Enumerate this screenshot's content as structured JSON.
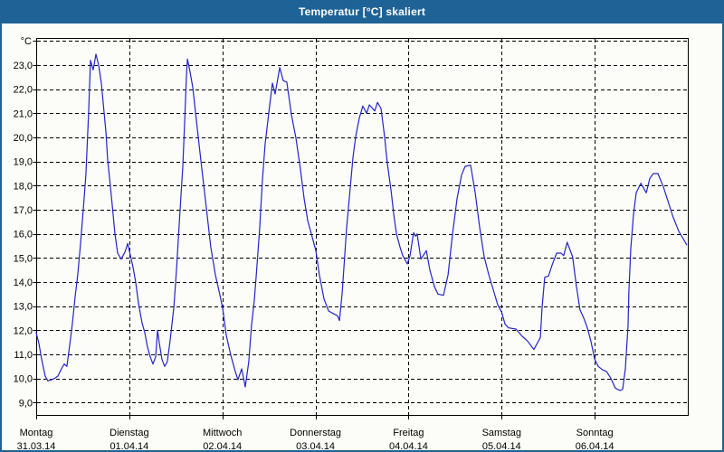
{
  "window": {
    "title": "Temperatur [°C] skaliert"
  },
  "colors": {
    "titlebar": "#1f6396",
    "window_border": "#1f6396",
    "window_background": "#fcfdf8",
    "line": "#2424cb",
    "grid": "#000000",
    "title_text": "#ffffff",
    "axis_text": "#000000"
  },
  "chart_data": {
    "type": "line",
    "title": "Temperatur [°C] skaliert",
    "y_axis_unit": "°C",
    "ylim": [
      8.45,
      24.125
    ],
    "x_range_hours": [
      0,
      168
    ],
    "grid": "dashed",
    "legend": "none",
    "y_gridlines": [
      9,
      10,
      11,
      12,
      13,
      14,
      15,
      16,
      17,
      18,
      19,
      20,
      21,
      22,
      23,
      24
    ],
    "y_ticks": [
      {
        "value": 23,
        "label": "23,0"
      },
      {
        "value": 22,
        "label": "22,0"
      },
      {
        "value": 21,
        "label": "21,0"
      },
      {
        "value": 20,
        "label": "20,0"
      },
      {
        "value": 19,
        "label": "19,0"
      },
      {
        "value": 18,
        "label": "18,0"
      },
      {
        "value": 17,
        "label": "17,0"
      },
      {
        "value": 16,
        "label": "16,0"
      },
      {
        "value": 15,
        "label": "15,0"
      },
      {
        "value": 14,
        "label": "14,0"
      },
      {
        "value": 13,
        "label": "13,0"
      },
      {
        "value": 12,
        "label": "12,0"
      },
      {
        "value": 11,
        "label": "11,0"
      },
      {
        "value": 10,
        "label": "10,0"
      },
      {
        "value": 9,
        "label": "9,0"
      }
    ],
    "x_days": [
      {
        "name": "Montag",
        "date": "31.03.14",
        "position_hours": 0
      },
      {
        "name": "Dienstag",
        "date": "01.04.14",
        "position_hours": 24
      },
      {
        "name": "Mittwoch",
        "date": "02.04.14",
        "position_hours": 48
      },
      {
        "name": "Donnerstag",
        "date": "03.04.14",
        "position_hours": 72
      },
      {
        "name": "Freitag",
        "date": "04.04.14",
        "position_hours": 96
      },
      {
        "name": "Samstag",
        "date": "05.04.14",
        "position_hours": 120
      },
      {
        "name": "Sonntag",
        "date": "06.04.14",
        "position_hours": 144
      }
    ],
    "series": [
      {
        "name": "Temperatur",
        "color": "#2424cb",
        "points": [
          [
            0,
            11.9
          ],
          [
            0.7,
            11.45
          ],
          [
            1.4,
            10.8
          ],
          [
            2.3,
            10.1
          ],
          [
            3,
            9.9
          ],
          [
            4,
            9.95
          ],
          [
            4.7,
            10
          ],
          [
            5.6,
            10.1
          ],
          [
            6.5,
            10.4
          ],
          [
            7.2,
            10.6
          ],
          [
            7.9,
            10.5
          ],
          [
            8.6,
            11.35
          ],
          [
            9.3,
            12.25
          ],
          [
            10,
            13.35
          ],
          [
            10.7,
            14.3
          ],
          [
            11.4,
            15.55
          ],
          [
            12.1,
            16.95
          ],
          [
            12.8,
            18.45
          ],
          [
            13.5,
            21
          ],
          [
            14,
            23.2
          ],
          [
            14.7,
            22.8
          ],
          [
            15.4,
            23.45
          ],
          [
            16.1,
            23
          ],
          [
            16.8,
            22.25
          ],
          [
            18,
            20.2
          ],
          [
            18.4,
            19.1
          ],
          [
            19.1,
            18
          ],
          [
            19.6,
            17.2
          ],
          [
            20.3,
            16
          ],
          [
            21,
            15.2
          ],
          [
            21.9,
            14.95
          ],
          [
            22.9,
            15.25
          ],
          [
            23.6,
            15.6
          ],
          [
            24.3,
            15.1
          ],
          [
            25,
            14.6
          ],
          [
            25.7,
            13.95
          ],
          [
            26.4,
            13.1
          ],
          [
            27.3,
            12.3
          ],
          [
            28,
            11.9
          ],
          [
            28.7,
            11.3
          ],
          [
            29.4,
            10.9
          ],
          [
            30.1,
            10.6
          ],
          [
            30.8,
            10.9
          ],
          [
            31.3,
            12
          ],
          [
            31.7,
            11.5
          ],
          [
            32.4,
            10.8
          ],
          [
            33.1,
            10.5
          ],
          [
            33.8,
            10.7
          ],
          [
            34.5,
            11.55
          ],
          [
            35.5,
            12.95
          ],
          [
            36.2,
            14.55
          ],
          [
            36.9,
            16.45
          ],
          [
            37.8,
            18.8
          ],
          [
            38.3,
            20.7
          ],
          [
            38.7,
            22.45
          ],
          [
            39,
            23.25
          ],
          [
            39.7,
            22.7
          ],
          [
            40.4,
            22.05
          ],
          [
            41.5,
            20.4
          ],
          [
            42.7,
            18.7
          ],
          [
            43.9,
            17.05
          ],
          [
            45,
            15.45
          ],
          [
            46.2,
            14.3
          ],
          [
            47.4,
            13.45
          ],
          [
            48.1,
            12.9
          ],
          [
            49,
            11.8
          ],
          [
            50.2,
            10.95
          ],
          [
            51.3,
            10.3
          ],
          [
            52,
            9.95
          ],
          [
            53,
            10.4
          ],
          [
            53.9,
            9.65
          ],
          [
            54.8,
            10.7
          ],
          [
            55.5,
            12.2
          ],
          [
            56.2,
            13.2
          ],
          [
            56.7,
            14.2
          ],
          [
            57.6,
            16.2
          ],
          [
            58.3,
            18.2
          ],
          [
            59,
            19.7
          ],
          [
            60,
            21.05
          ],
          [
            60.9,
            22.25
          ],
          [
            61.6,
            21.8
          ],
          [
            62.8,
            22.9
          ],
          [
            63.7,
            22.35
          ],
          [
            64.6,
            22.3
          ],
          [
            65.8,
            20.95
          ],
          [
            67,
            19.95
          ],
          [
            68.1,
            18.7
          ],
          [
            69.1,
            17.45
          ],
          [
            70,
            16.55
          ],
          [
            71.2,
            15.85
          ],
          [
            72.1,
            15.3
          ],
          [
            73,
            14.3
          ],
          [
            74.2,
            13.3
          ],
          [
            75.4,
            12.8
          ],
          [
            76.5,
            12.7
          ],
          [
            77.7,
            12.6
          ],
          [
            78.2,
            12.4
          ],
          [
            78.9,
            13.55
          ],
          [
            80,
            16.2
          ],
          [
            81,
            17.95
          ],
          [
            81.7,
            19.2
          ],
          [
            82.4,
            20.05
          ],
          [
            83.3,
            20.8
          ],
          [
            84.2,
            21.3
          ],
          [
            85.2,
            21
          ],
          [
            85.9,
            21.35
          ],
          [
            87.3,
            21.1
          ],
          [
            88,
            21.45
          ],
          [
            88.9,
            21.2
          ],
          [
            89.8,
            20.05
          ],
          [
            90.5,
            18.95
          ],
          [
            91.5,
            17.8
          ],
          [
            92.2,
            16.8
          ],
          [
            92.9,
            16
          ],
          [
            93.8,
            15.45
          ],
          [
            94.5,
            15.1
          ],
          [
            95.7,
            14.75
          ],
          [
            96.4,
            15.1
          ],
          [
            97.3,
            16.05
          ],
          [
            97.8,
            15.9
          ],
          [
            98.2,
            16
          ],
          [
            99.2,
            14.95
          ],
          [
            100.6,
            15.3
          ],
          [
            101.5,
            14.5
          ],
          [
            102.7,
            13.8
          ],
          [
            103.6,
            13.5
          ],
          [
            105,
            13.45
          ],
          [
            106.2,
            14.3
          ],
          [
            107.3,
            15.95
          ],
          [
            108.5,
            17.45
          ],
          [
            109.7,
            18.45
          ],
          [
            110.6,
            18.8
          ],
          [
            112,
            18.85
          ],
          [
            113.2,
            17.7
          ],
          [
            114.3,
            16.3
          ],
          [
            115.5,
            15.05
          ],
          [
            116.7,
            14.3
          ],
          [
            117.8,
            13.7
          ],
          [
            119,
            13.05
          ],
          [
            120,
            12.75
          ],
          [
            120.9,
            12.25
          ],
          [
            121.8,
            12.1
          ],
          [
            123.7,
            12.05
          ],
          [
            125.3,
            11.75
          ],
          [
            126.7,
            11.55
          ],
          [
            128.3,
            11.2
          ],
          [
            130,
            11.7
          ],
          [
            130.4,
            12.9
          ],
          [
            131.1,
            14.2
          ],
          [
            132.1,
            14.25
          ],
          [
            133,
            14.7
          ],
          [
            134.2,
            15.2
          ],
          [
            135.3,
            15.2
          ],
          [
            136,
            15.1
          ],
          [
            136.9,
            15.65
          ],
          [
            138.3,
            15.05
          ],
          [
            139.3,
            13.8
          ],
          [
            140.2,
            12.85
          ],
          [
            141.2,
            12.5
          ],
          [
            142.1,
            12.1
          ],
          [
            143,
            11.55
          ],
          [
            144,
            10.8
          ],
          [
            144.9,
            10.5
          ],
          [
            146.1,
            10.35
          ],
          [
            147,
            10.3
          ],
          [
            148.2,
            10
          ],
          [
            149.3,
            9.6
          ],
          [
            150.5,
            9.5
          ],
          [
            151.2,
            9.55
          ],
          [
            151.9,
            10.4
          ],
          [
            152.6,
            12.2
          ],
          [
            152.8,
            13.6
          ],
          [
            153.3,
            15.4
          ],
          [
            154,
            16.8
          ],
          [
            154.7,
            17.7
          ],
          [
            155.9,
            18.1
          ],
          [
            157.3,
            17.7
          ],
          [
            158.2,
            18.3
          ],
          [
            159.1,
            18.5
          ],
          [
            160.3,
            18.5
          ],
          [
            161.7,
            17.95
          ],
          [
            162.8,
            17.4
          ],
          [
            164.2,
            16.7
          ],
          [
            165.7,
            16.1
          ],
          [
            166.8,
            15.8
          ],
          [
            167.7,
            15.55
          ]
        ]
      }
    ]
  }
}
